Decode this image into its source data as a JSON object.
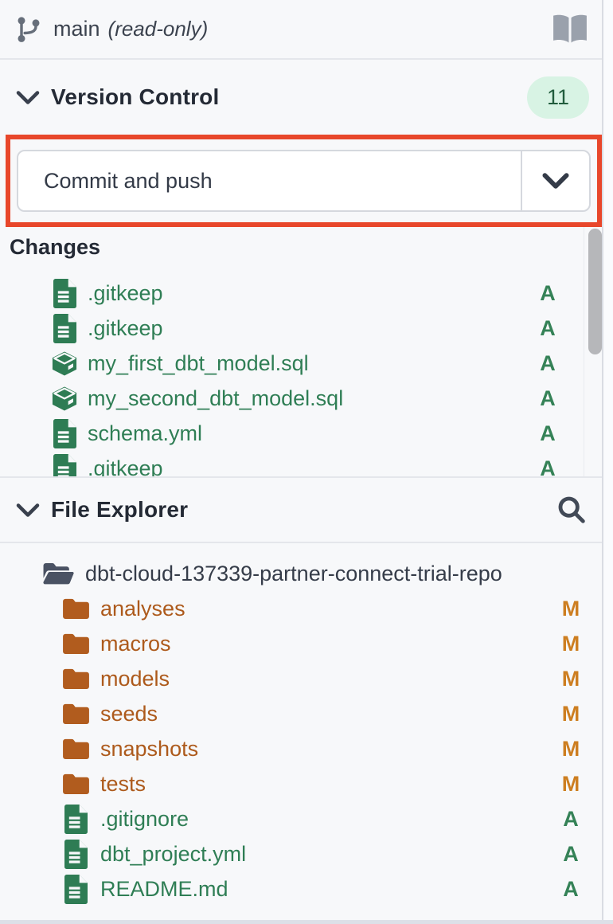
{
  "topbar": {
    "branch_name": "main",
    "branch_mode": "(read-only)"
  },
  "version_control": {
    "title": "Version Control",
    "badge_count": "11",
    "commit_button": {
      "label": "Commit and push"
    },
    "changes_title": "Changes",
    "changes": [
      {
        "name": ".gitkeep",
        "icon": "file-icon",
        "status": "A"
      },
      {
        "name": ".gitkeep",
        "icon": "file-icon",
        "status": "A"
      },
      {
        "name": "my_first_dbt_model.sql",
        "icon": "model-icon",
        "status": "A"
      },
      {
        "name": "my_second_dbt_model.sql",
        "icon": "model-icon",
        "status": "A"
      },
      {
        "name": "schema.yml",
        "icon": "file-icon",
        "status": "A"
      },
      {
        "name": ".gitkeep",
        "icon": "file-icon",
        "status": "A"
      }
    ]
  },
  "file_explorer": {
    "title": "File Explorer",
    "root": {
      "name": "dbt-cloud-137339-partner-connect-trial-repo"
    },
    "items": [
      {
        "name": "analyses",
        "icon": "folder-icon",
        "status": "M"
      },
      {
        "name": "macros",
        "icon": "folder-icon",
        "status": "M"
      },
      {
        "name": "models",
        "icon": "folder-icon",
        "status": "M"
      },
      {
        "name": "seeds",
        "icon": "folder-icon",
        "status": "M"
      },
      {
        "name": "snapshots",
        "icon": "folder-icon",
        "status": "M"
      },
      {
        "name": "tests",
        "icon": "folder-icon",
        "status": "M"
      },
      {
        "name": ".gitignore",
        "icon": "file-icon",
        "status": "A"
      },
      {
        "name": "dbt_project.yml",
        "icon": "file-icon",
        "status": "A"
      },
      {
        "name": "README.md",
        "icon": "file-icon",
        "status": "A"
      }
    ]
  },
  "colors": {
    "annotation_red": "#e8472b",
    "added_green": "#2f7e55",
    "modified_orange": "#cd7e20",
    "folder_orange": "#ad5a1c",
    "badge_bg": "#d8f3e4",
    "badge_text": "#215c3d"
  }
}
